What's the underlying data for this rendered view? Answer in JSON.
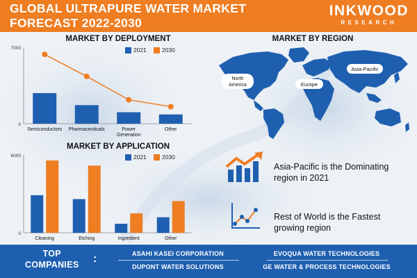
{
  "header": {
    "title_line1": "GLOBAL ULTRAPURE WATER MARKET",
    "title_line2": "FORECAST 2022-2030",
    "brand_line1": "INKWOOD",
    "brand_line2": "RESEARCH"
  },
  "colors": {
    "orange": "#ef7d22",
    "blue": "#1f5fb0",
    "map": "#1f5fb0"
  },
  "chart_data": [
    {
      "type": "bar",
      "title": "MARKET BY DEPLOYMENT",
      "categories": [
        "Semiconductors",
        "Pharmaceuticals",
        "Power Generation",
        "Other"
      ],
      "ylim": [
        0,
        7000
      ],
      "yticks": [
        "0",
        "7000"
      ],
      "legend_position": "top",
      "series": [
        {
          "name": "2021",
          "color": "#1f5fb0",
          "values": [
            2800,
            1700,
            1050,
            850
          ]
        },
        {
          "name": "2030",
          "color": "#ef7d22",
          "render": "line",
          "values": [
            6350,
            4330,
            2190,
            1560
          ]
        }
      ]
    },
    {
      "type": "bar",
      "title": "MARKET BY APPLICATION",
      "categories": [
        "Cleaning",
        "Etching",
        "Ingredient",
        "Other"
      ],
      "ylim": [
        0,
        6000
      ],
      "yticks": [
        "0",
        "6000"
      ],
      "legend_position": "top",
      "series": [
        {
          "name": "2021",
          "color": "#1f5fb0",
          "values": [
            2900,
            2600,
            700,
            1200
          ]
        },
        {
          "name": "2030",
          "color": "#ef7d22",
          "values": [
            5580,
            5180,
            1500,
            2450
          ]
        }
      ]
    }
  ],
  "map": {
    "title": "MARKET BY REGION",
    "labels": [
      "North America",
      "Europe",
      "Asia-Pacific"
    ]
  },
  "insights": [
    {
      "line1": "Asia-Pacific is the Dominating",
      "line2": "region in 2021",
      "icon": "rising-bar-chart-icon"
    },
    {
      "line1": "Rest of World is the Fastest",
      "line2": "growing region",
      "icon": "growth-line-chart-icon"
    }
  ],
  "footer": {
    "label_line1": "TOP",
    "label_line2": "COMPANIES",
    "colon": ":",
    "companies": [
      "ASAHI KASEI CORPORATION",
      "EVOQUA WATER TECHNOLOGIES",
      "DUPONT WATER SOLUTIONS",
      "GE WATER & PROCESS TECHNOLOGIES"
    ]
  }
}
